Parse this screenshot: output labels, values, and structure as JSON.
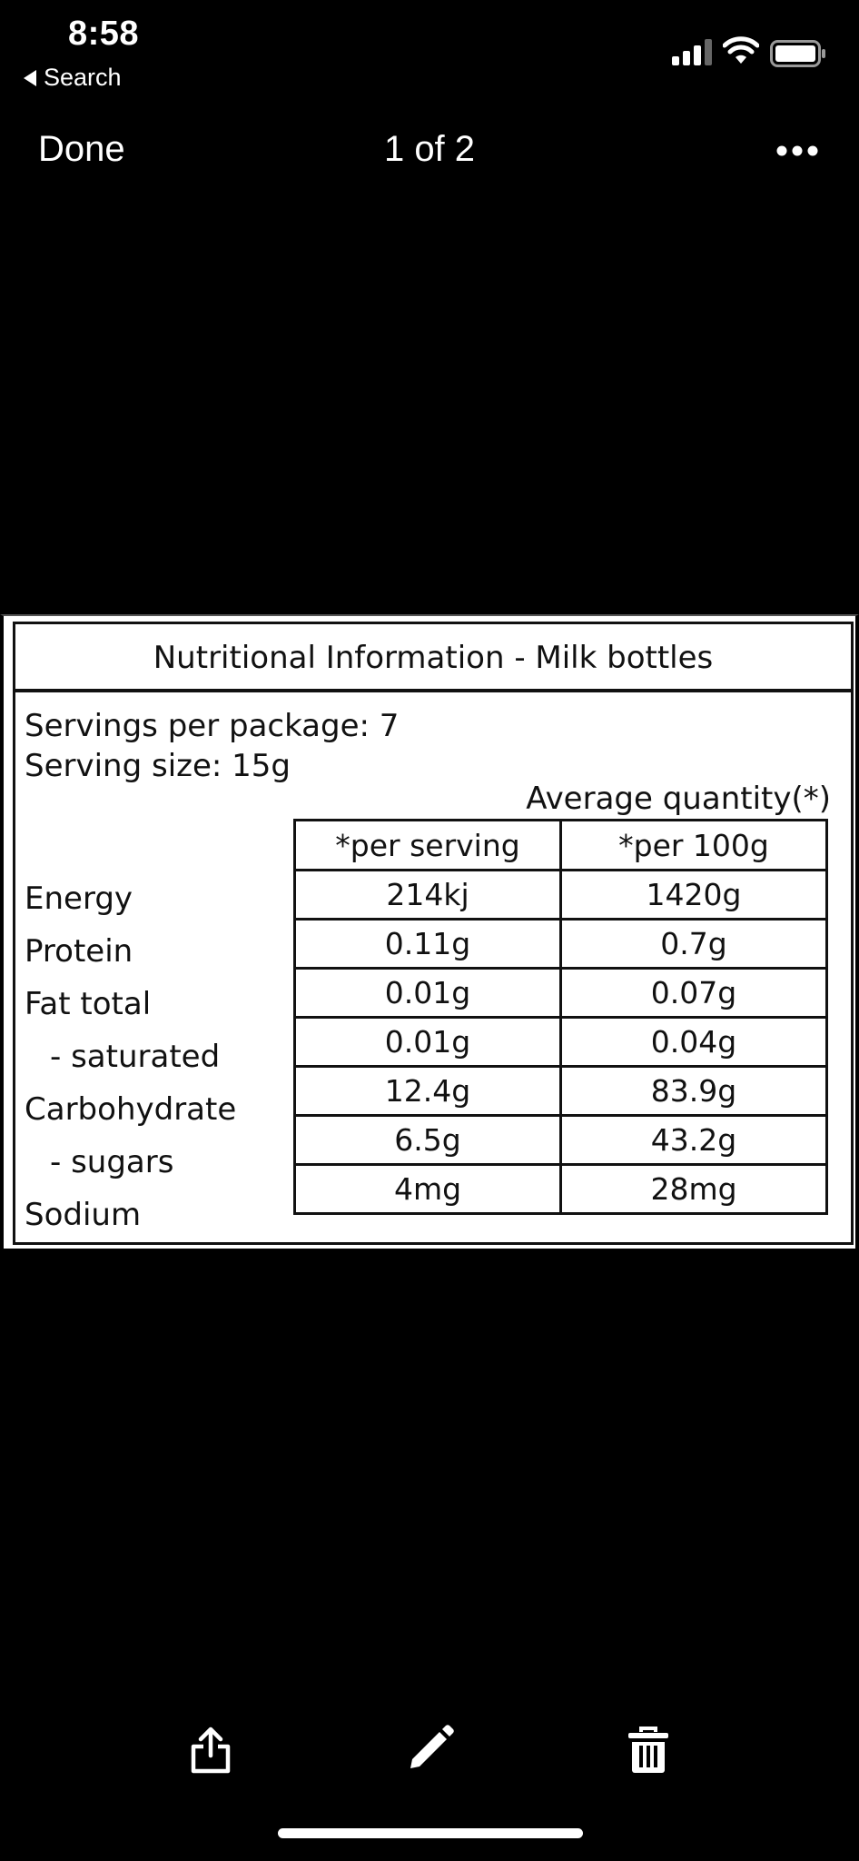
{
  "status_bar": {
    "time": "8:58",
    "back_label": "Search",
    "icons": [
      "cellular-signal-icon",
      "wifi-icon",
      "battery-icon"
    ]
  },
  "nav": {
    "done_label": "Done",
    "title": "1 of 2",
    "more_icon": "more-dots-icon"
  },
  "photo": {
    "title": "Nutritional Information - Milk bottles",
    "servings": "Servings per package: 7",
    "serving_size": "Serving size: 15g",
    "avg_qty": "Average quantity(*)",
    "columns": [
      "*per serving",
      "*per 100g"
    ],
    "rows": [
      {
        "label": "Energy",
        "per_serving": "214kj",
        "per_100g": "1420g"
      },
      {
        "label": "Protein",
        "per_serving": "0.11g",
        "per_100g": "0.7g"
      },
      {
        "label": "Fat total",
        "per_serving": "0.01g",
        "per_100g": "0.07g"
      },
      {
        "label": "- saturated",
        "per_serving": "0.01g",
        "per_100g": "0.04g"
      },
      {
        "label": "Carbohydrate",
        "per_serving": "12.4g",
        "per_100g": "83.9g"
      },
      {
        "label": "- sugars",
        "per_serving": "6.5g",
        "per_100g": "43.2g"
      },
      {
        "label": "Sodium",
        "per_serving": "4mg",
        "per_100g": "28mg"
      }
    ]
  },
  "toolbar": {
    "icons": [
      "share-icon",
      "edit-pencil-icon",
      "trash-icon"
    ]
  }
}
